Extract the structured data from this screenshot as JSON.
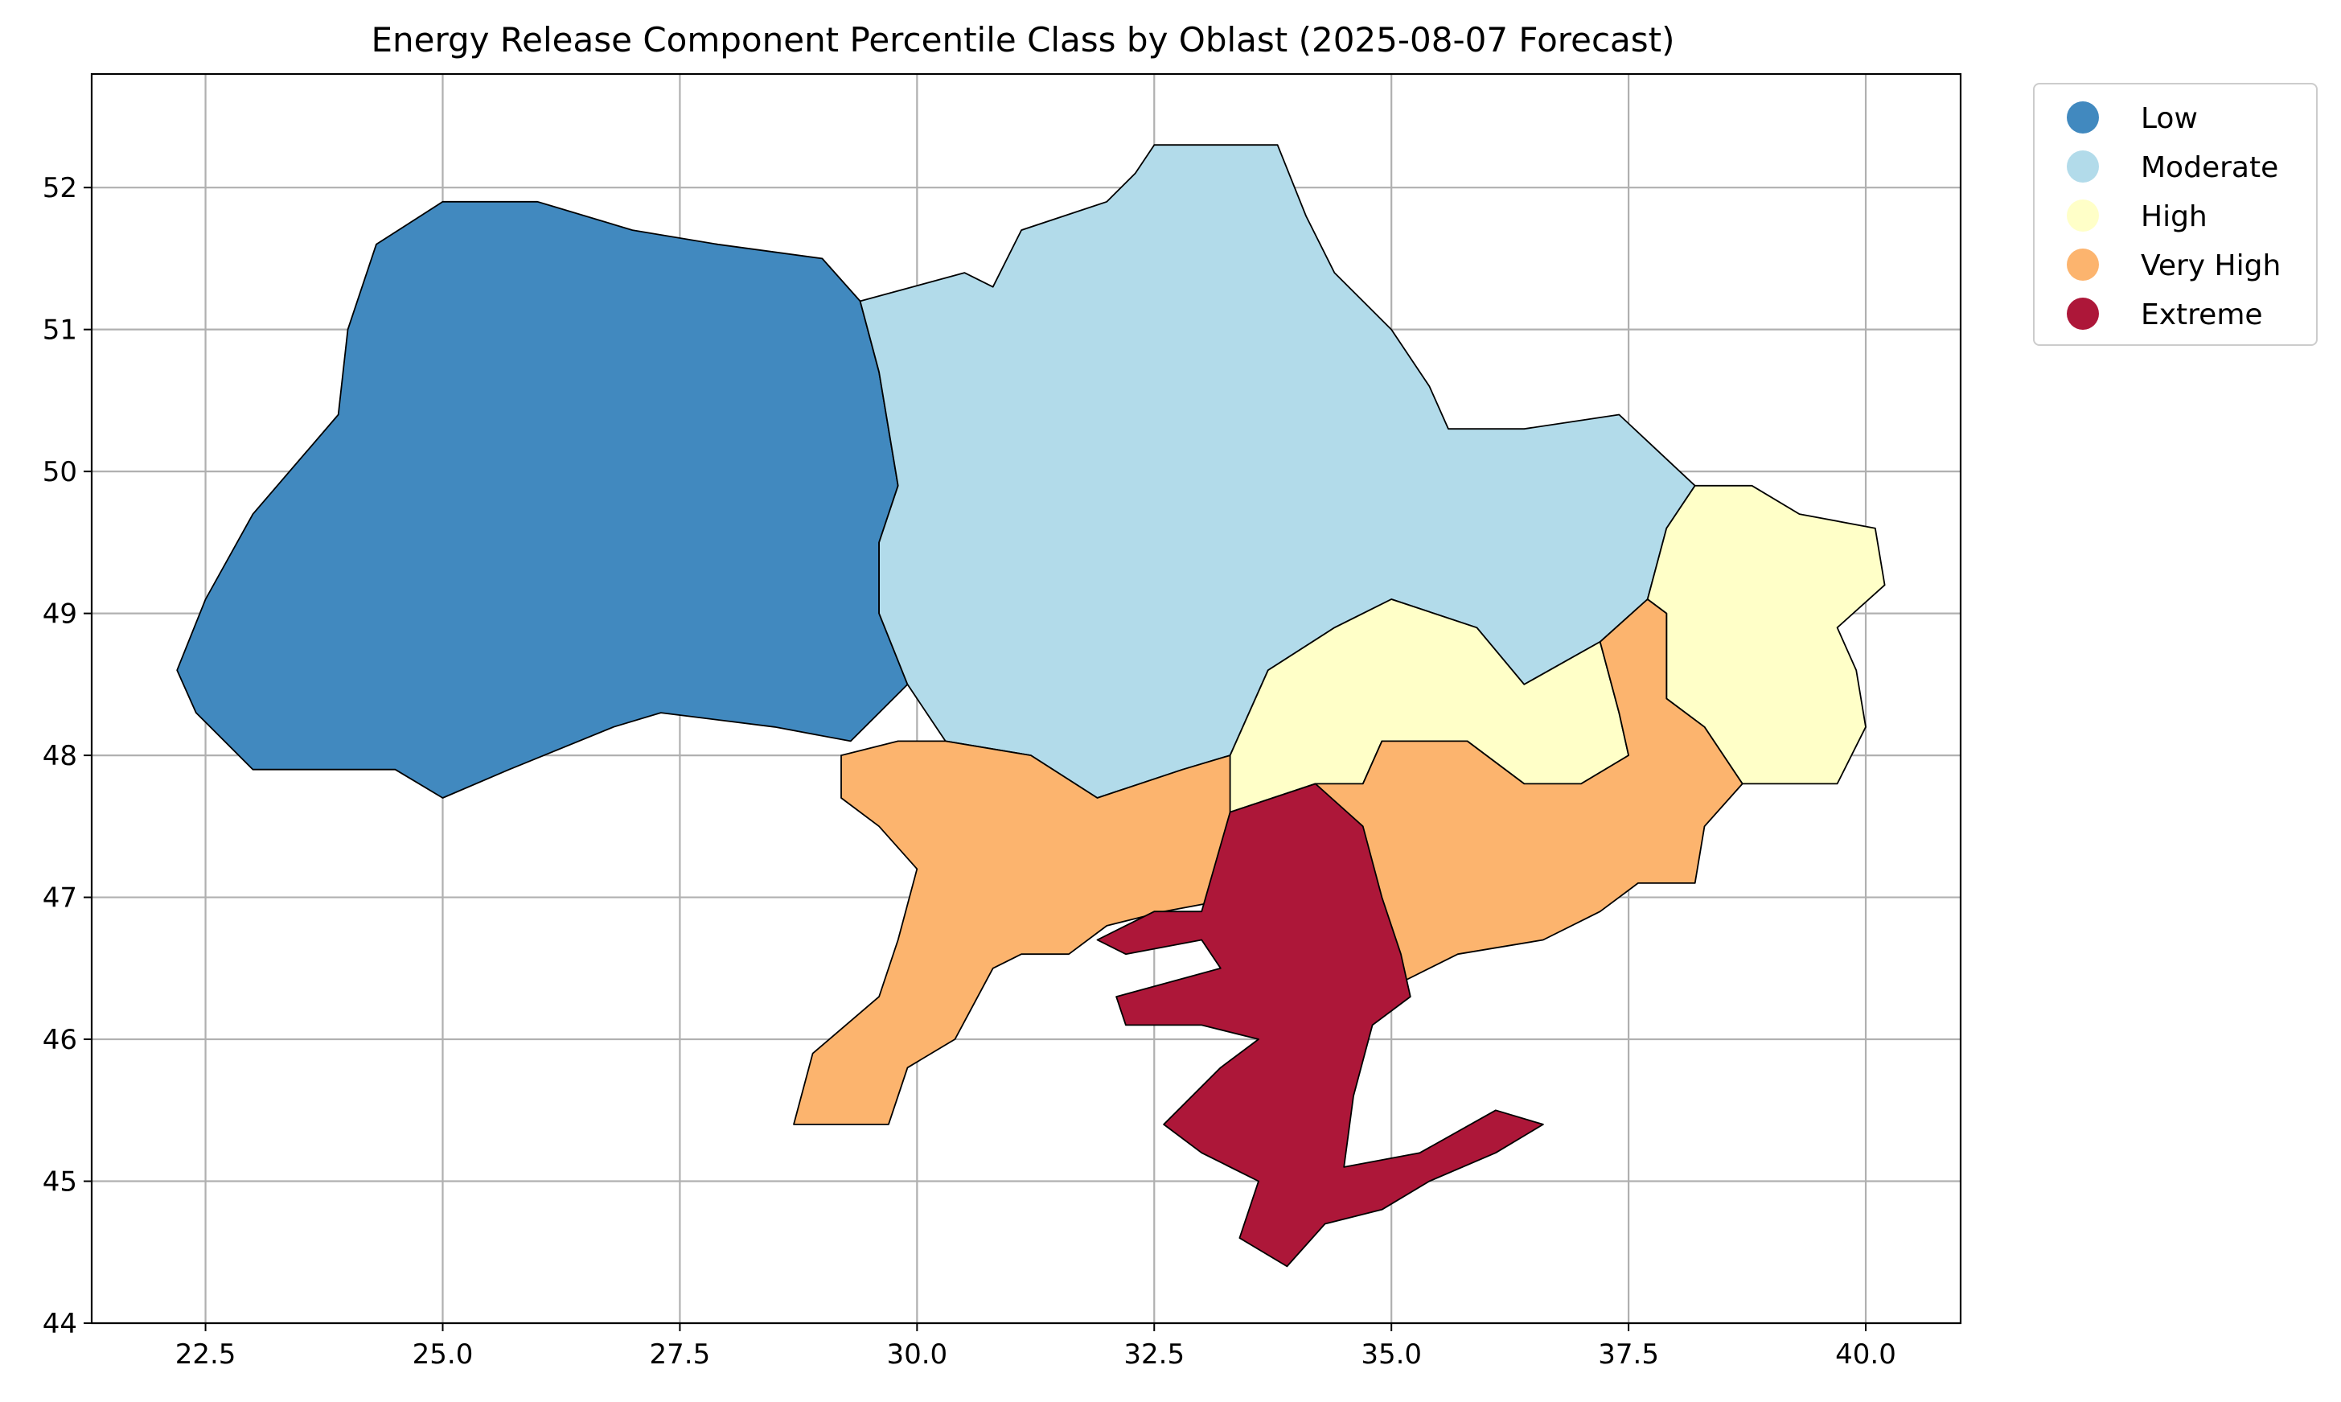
{
  "chart_data": {
    "type": "choropleth",
    "title": "Energy Release Component Percentile Class by Oblast (2025-08-07 Forecast)",
    "xlim": [
      21.3,
      41.0
    ],
    "ylim": [
      44.0,
      52.8
    ],
    "x_ticks": [
      "22.5",
      "25.0",
      "27.5",
      "30.0",
      "32.5",
      "35.0",
      "37.5",
      "40.0"
    ],
    "y_ticks": [
      "44",
      "45",
      "46",
      "47",
      "48",
      "49",
      "50",
      "51",
      "52"
    ],
    "grid": true,
    "legend_position": "outside-top-right",
    "classes": [
      {
        "name": "Low",
        "color": "#4189bf"
      },
      {
        "name": "Moderate",
        "color": "#b2dbea"
      },
      {
        "name": "High",
        "color": "#ffffc8"
      },
      {
        "name": "Very High",
        "color": "#fcb46e"
      },
      {
        "name": "Extreme",
        "color": "#ad1739"
      }
    ],
    "regions": [
      {
        "class": "Low",
        "outline": [
          [
            22.2,
            48.6
          ],
          [
            22.5,
            49.1
          ],
          [
            23.0,
            49.7
          ],
          [
            23.9,
            50.4
          ],
          [
            24.0,
            51.0
          ],
          [
            24.3,
            51.6
          ],
          [
            25.0,
            51.9
          ],
          [
            26.0,
            51.9
          ],
          [
            27.0,
            51.7
          ],
          [
            27.9,
            51.6
          ],
          [
            29.0,
            51.5
          ],
          [
            29.4,
            51.2
          ],
          [
            29.6,
            50.7
          ],
          [
            29.8,
            49.9
          ],
          [
            29.6,
            49.5
          ],
          [
            29.6,
            49.0
          ],
          [
            29.9,
            48.5
          ],
          [
            29.3,
            48.1
          ],
          [
            28.5,
            48.2
          ],
          [
            27.3,
            48.3
          ],
          [
            26.8,
            48.2
          ],
          [
            25.7,
            47.9
          ],
          [
            25.0,
            47.7
          ],
          [
            24.5,
            47.9
          ],
          [
            23.7,
            47.9
          ],
          [
            23.0,
            47.9
          ],
          [
            22.4,
            48.3
          ]
        ]
      },
      {
        "class": "Moderate",
        "outline": [
          [
            29.4,
            51.2
          ],
          [
            30.5,
            51.4
          ],
          [
            30.8,
            51.3
          ],
          [
            31.1,
            51.7
          ],
          [
            32.0,
            51.9
          ],
          [
            32.3,
            52.1
          ],
          [
            32.5,
            52.3
          ],
          [
            33.3,
            52.3
          ],
          [
            33.8,
            52.3
          ],
          [
            34.1,
            51.8
          ],
          [
            34.4,
            51.4
          ],
          [
            35.0,
            51.0
          ],
          [
            35.4,
            50.6
          ],
          [
            35.6,
            50.3
          ],
          [
            36.4,
            50.3
          ],
          [
            37.4,
            50.4
          ],
          [
            38.2,
            49.9
          ],
          [
            37.9,
            49.6
          ],
          [
            37.7,
            49.1
          ],
          [
            37.2,
            48.8
          ],
          [
            36.4,
            48.5
          ],
          [
            35.9,
            48.9
          ],
          [
            35.0,
            49.1
          ],
          [
            34.4,
            48.9
          ],
          [
            33.7,
            48.6
          ],
          [
            33.3,
            48.0
          ],
          [
            32.8,
            47.9
          ],
          [
            31.9,
            47.7
          ],
          [
            31.2,
            48.0
          ],
          [
            30.3,
            48.1
          ],
          [
            29.9,
            48.5
          ],
          [
            29.6,
            49.0
          ],
          [
            29.6,
            49.5
          ],
          [
            29.8,
            49.9
          ],
          [
            29.6,
            50.7
          ]
        ]
      },
      {
        "class": "High",
        "outline": [
          [
            33.7,
            48.6
          ],
          [
            34.4,
            48.9
          ],
          [
            35.0,
            49.1
          ],
          [
            35.9,
            48.9
          ],
          [
            36.4,
            48.5
          ],
          [
            37.2,
            48.8
          ],
          [
            37.4,
            48.3
          ],
          [
            37.5,
            48.0
          ],
          [
            37.0,
            47.8
          ],
          [
            36.4,
            47.8
          ],
          [
            35.8,
            48.1
          ],
          [
            34.9,
            48.1
          ],
          [
            34.7,
            47.8
          ],
          [
            34.2,
            47.8
          ],
          [
            33.3,
            47.6
          ],
          [
            33.3,
            48.0
          ]
        ]
      },
      {
        "class": "High",
        "outline": [
          [
            38.2,
            49.9
          ],
          [
            38.8,
            49.9
          ],
          [
            39.3,
            49.7
          ],
          [
            40.1,
            49.6
          ],
          [
            40.2,
            49.2
          ],
          [
            39.7,
            48.9
          ],
          [
            39.9,
            48.6
          ],
          [
            40.0,
            48.2
          ],
          [
            39.7,
            47.8
          ],
          [
            38.7,
            47.8
          ],
          [
            38.3,
            48.2
          ],
          [
            37.9,
            48.4
          ],
          [
            37.9,
            49.0
          ],
          [
            37.7,
            49.1
          ],
          [
            37.9,
            49.6
          ]
        ]
      },
      {
        "class": "Very High",
        "outline": [
          [
            29.2,
            48.0
          ],
          [
            29.8,
            48.1
          ],
          [
            30.3,
            48.1
          ],
          [
            31.2,
            48.0
          ],
          [
            31.9,
            47.7
          ],
          [
            32.8,
            47.9
          ],
          [
            33.3,
            48.0
          ],
          [
            33.3,
            47.6
          ],
          [
            34.2,
            47.8
          ],
          [
            34.7,
            47.8
          ],
          [
            34.9,
            48.1
          ],
          [
            35.8,
            48.1
          ],
          [
            36.4,
            47.8
          ],
          [
            37.0,
            47.8
          ],
          [
            37.5,
            48.0
          ],
          [
            37.4,
            48.3
          ],
          [
            37.2,
            48.8
          ],
          [
            37.7,
            49.1
          ],
          [
            37.9,
            49.0
          ],
          [
            37.9,
            48.4
          ],
          [
            38.3,
            48.2
          ],
          [
            38.7,
            47.8
          ],
          [
            38.3,
            47.5
          ],
          [
            38.2,
            47.1
          ],
          [
            37.6,
            47.1
          ],
          [
            37.2,
            46.9
          ],
          [
            36.6,
            46.7
          ],
          [
            35.7,
            46.6
          ],
          [
            35.1,
            46.4
          ],
          [
            34.9,
            46.6
          ],
          [
            34.1,
            46.9
          ],
          [
            33.4,
            47.0
          ],
          [
            32.6,
            46.9
          ],
          [
            32.0,
            46.8
          ],
          [
            31.6,
            46.6
          ],
          [
            31.1,
            46.6
          ],
          [
            30.8,
            46.5
          ],
          [
            30.4,
            46.0
          ],
          [
            29.9,
            45.8
          ],
          [
            29.7,
            45.4
          ],
          [
            29.2,
            45.4
          ],
          [
            28.7,
            45.4
          ],
          [
            28.9,
            45.9
          ],
          [
            29.6,
            46.3
          ],
          [
            29.8,
            46.7
          ],
          [
            30.0,
            47.2
          ],
          [
            29.6,
            47.5
          ],
          [
            29.2,
            47.7
          ]
        ]
      },
      {
        "class": "Extreme",
        "outline": [
          [
            33.3,
            47.6
          ],
          [
            34.2,
            47.8
          ],
          [
            34.7,
            47.5
          ],
          [
            34.9,
            47.0
          ],
          [
            35.1,
            46.6
          ],
          [
            35.2,
            46.3
          ],
          [
            34.8,
            46.1
          ],
          [
            34.6,
            45.6
          ],
          [
            34.5,
            45.1
          ],
          [
            35.3,
            45.2
          ],
          [
            36.1,
            45.5
          ],
          [
            36.6,
            45.4
          ],
          [
            36.1,
            45.2
          ],
          [
            35.4,
            45.0
          ],
          [
            34.9,
            44.8
          ],
          [
            34.3,
            44.7
          ],
          [
            33.9,
            44.4
          ],
          [
            33.4,
            44.6
          ],
          [
            33.6,
            45.0
          ],
          [
            33.0,
            45.2
          ],
          [
            32.6,
            45.4
          ],
          [
            33.2,
            45.8
          ],
          [
            33.6,
            46.0
          ],
          [
            33.0,
            46.1
          ],
          [
            32.2,
            46.1
          ],
          [
            32.1,
            46.3
          ],
          [
            33.2,
            46.5
          ],
          [
            33.0,
            46.7
          ],
          [
            32.2,
            46.6
          ],
          [
            31.9,
            46.7
          ],
          [
            32.5,
            46.9
          ],
          [
            33.0,
            46.9
          ]
        ]
      }
    ]
  }
}
